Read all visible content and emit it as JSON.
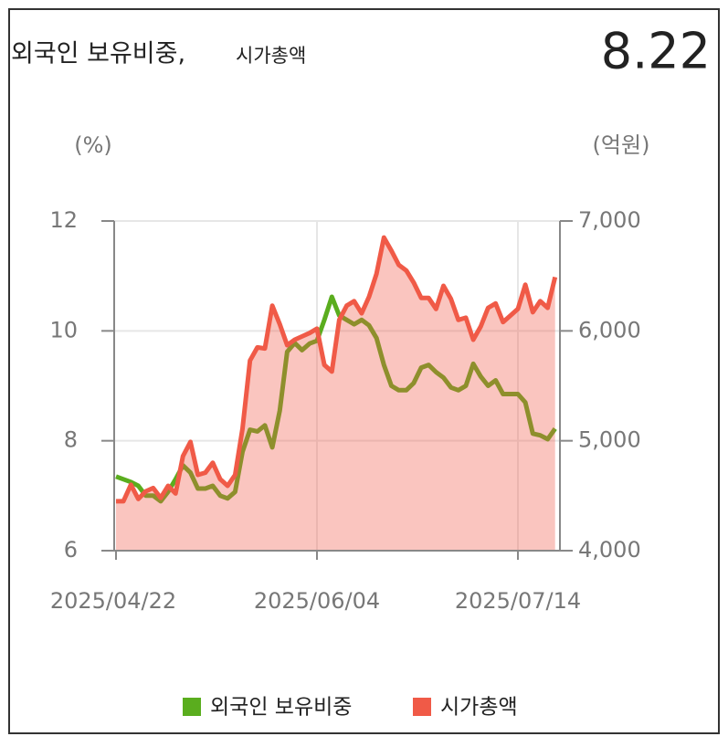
{
  "chart_data": {
    "type": "line",
    "title": "외국인 보유비중,",
    "subtitle": "시가총액",
    "current_value": 8.22,
    "y_label": "(%)",
    "y2_label": "(억원)",
    "categories": [
      "2025/04/22",
      null,
      null,
      null,
      null,
      null,
      null,
      null,
      null,
      null,
      null,
      null,
      null,
      null,
      null,
      null,
      null,
      null,
      null,
      null,
      null,
      null,
      null,
      null,
      null,
      null,
      null,
      "2025/06/04",
      null,
      null,
      null,
      null,
      null,
      null,
      null,
      null,
      null,
      null,
      null,
      null,
      null,
      null,
      null,
      null,
      null,
      null,
      null,
      null,
      null,
      null,
      null,
      null,
      null,
      null,
      "2025/07/14",
      null,
      null,
      null,
      null,
      null
    ],
    "ylim": [
      6,
      12
    ],
    "yticks": [
      6,
      8,
      10,
      12
    ],
    "y2lim": [
      4000,
      7000
    ],
    "y2ticks": [
      {
        "value": 4000,
        "label": "4,000"
      },
      {
        "value": 5000,
        "label": "5,000"
      },
      {
        "value": 6000,
        "label": "6,000"
      },
      {
        "value": 7000,
        "label": "7,000"
      }
    ],
    "grid": true,
    "series": [
      {
        "name": "외국인 보유비중",
        "color": "#5aad1e",
        "values": [
          7.35,
          7.3,
          7.25,
          7.18,
          7.0,
          7.0,
          6.9,
          7.07,
          7.3,
          7.55,
          7.42,
          7.13,
          7.13,
          7.18,
          7.0,
          6.95,
          7.07,
          7.8,
          8.2,
          8.17,
          8.28,
          7.88,
          8.55,
          9.62,
          9.78,
          9.65,
          9.77,
          9.82,
          10.2,
          10.62,
          10.28,
          10.2,
          10.12,
          10.2,
          10.1,
          9.87,
          9.38,
          9.0,
          8.92,
          8.92,
          9.05,
          9.33,
          9.38,
          9.25,
          9.15,
          8.97,
          8.92,
          9.0,
          9.4,
          9.17,
          9.0,
          9.1,
          8.85,
          8.85,
          8.85,
          8.7,
          8.13,
          8.1,
          8.03,
          8.22
        ]
      },
      {
        "name": "시가총액",
        "color": "#f05a47",
        "axis": "y2",
        "area": true,
        "values": [
          4450,
          4450,
          4600,
          4470,
          4540,
          4570,
          4480,
          4590,
          4520,
          4860,
          4990,
          4690,
          4710,
          4800,
          4650,
          4590,
          4690,
          5110,
          5730,
          5850,
          5840,
          6230,
          6060,
          5870,
          5920,
          5950,
          5980,
          6020,
          5690,
          5630,
          6100,
          6230,
          6270,
          6160,
          6310,
          6520,
          6850,
          6730,
          6600,
          6550,
          6440,
          6300,
          6300,
          6200,
          6410,
          6290,
          6100,
          6120,
          5920,
          6040,
          6210,
          6250,
          6080,
          6140,
          6200,
          6420,
          6170,
          6270,
          6210,
          6490
        ]
      }
    ]
  }
}
